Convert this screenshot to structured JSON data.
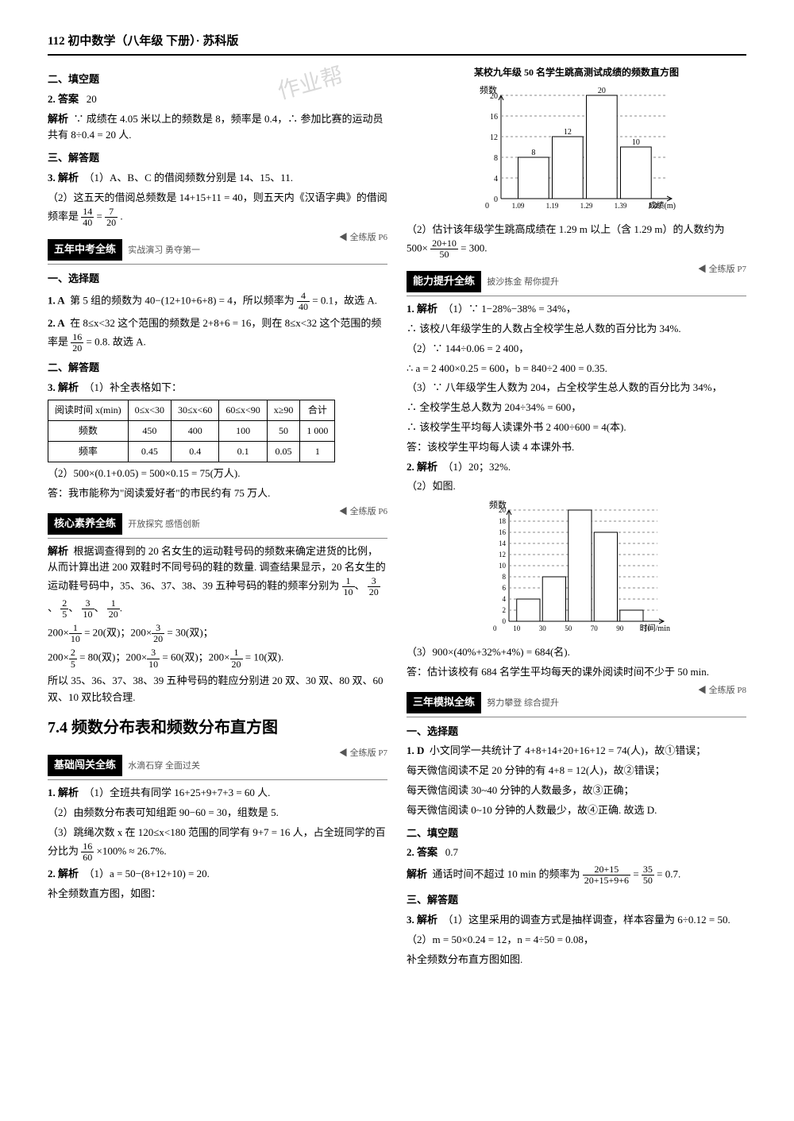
{
  "header": "112  初中数学（八年级  下册）· 苏科版",
  "left": {
    "sec2_title": "二、填空题",
    "q2_label": "2. 答案",
    "q2_ans": "20",
    "q2_expl_label": "解析",
    "q2_expl": "∵ 成绩在 4.05 米以上的频数是 8，频率是 0.4，∴ 参加比赛的运动员共有 8÷0.4 = 20 人.",
    "sec3_title": "三、解答题",
    "q3_label": "3. 解析",
    "q3_p1": "（1）A、B、C 的借阅频数分别是 14、15、11.",
    "q3_p2a": "（2）这五天的借阅总频数是 14+15+11 = 40，则五天内《汉语字典》的借阅频率是",
    "q3_frac1_num": "14",
    "q3_frac1_den": "40",
    "q3_eq": " = ",
    "q3_frac2_num": "7",
    "q3_frac2_den": "20",
    "q3_period": ".",
    "banner5": "五年中考全练",
    "banner5_sub": "实战演习 勇夺第一",
    "banner5_right": "◀ 全练版 P6",
    "mc_title": "一、选择题",
    "mc1_label": "1. A",
    "mc1_text_a": "第 5 组的频数为 40−(12+10+6+8) = 4，所以频率为",
    "mc1_frac_num": "4",
    "mc1_frac_den": "40",
    "mc1_text_b": " = 0.1，故选 A.",
    "mc2_label": "2. A",
    "mc2_text_a": "在 8≤x<32 这个范围的频数是 2+8+6 = 16，则在 8≤x<32 这个范围的频率是",
    "mc2_frac_num": "16",
    "mc2_frac_den": "20",
    "mc2_text_b": " = 0.8. 故选 A.",
    "ans_title": "二、解答题",
    "ans3_label": "3. 解析",
    "ans3_p1": "（1）补全表格如下：",
    "table": {
      "headers": [
        "阅读时间 x(min)",
        "0≤x<30",
        "30≤x<60",
        "60≤x<90",
        "x≥90",
        "合计"
      ],
      "rows": [
        [
          "频数",
          "450",
          "400",
          "100",
          "50",
          "1 000"
        ],
        [
          "频率",
          "0.45",
          "0.4",
          "0.1",
          "0.05",
          "1"
        ]
      ]
    },
    "ans3_p2": "（2）500×(0.1+0.05) = 500×0.15 = 75(万人).",
    "ans3_p3": "答：我市能称为\"阅读爱好者\"的市民约有 75 万人.",
    "bannerH": "核心素养全练",
    "bannerH_sub": "开放探究 感悟创新",
    "bannerH_right": "◀ 全练版 P6",
    "hx_label": "解析",
    "hx_p1": "根据调查得到的 20 名女生的运动鞋号码的频数来确定进货的比例，从而计算出进 200 双鞋时不同号码的鞋的数量. 调查结果显示，20 名女生的运动鞋号码中，35、36、37、38、39 五种号码的鞋的频率分别为",
    "hx_fr1n": "1",
    "hx_fr1d": "10",
    "hx_c1": "、",
    "hx_fr2n": "3",
    "hx_fr2d": "20",
    "hx_c2": "、",
    "hx_fr3n": "2",
    "hx_fr3d": "5",
    "hx_c3": "、",
    "hx_fr4n": "3",
    "hx_fr4d": "10",
    "hx_c4": "、",
    "hx_fr5n": "1",
    "hx_fr5d": "20",
    "hx_c5": ".",
    "hx_l1a": "200×",
    "hx_l1fn": "1",
    "hx_l1fd": "10",
    "hx_l1b": " = 20(双)；200×",
    "hx_l1f2n": "3",
    "hx_l1f2d": "20",
    "hx_l1c": " = 30(双)；",
    "hx_l2a": "200×",
    "hx_l2fn": "2",
    "hx_l2fd": "5",
    "hx_l2b": " = 80(双)；200×",
    "hx_l2f2n": "3",
    "hx_l2f2d": "10",
    "hx_l2c": " = 60(双)；200×",
    "hx_l2f3n": "1",
    "hx_l2f3d": "20",
    "hx_l2d": " = 10(双).",
    "hx_p2": "所以 35、36、37、38、39 五种号码的鞋应分别进 20 双、30 双、80 双、60 双、10 双比较合理.",
    "big74": "7.4  频数分布表和频数分布直方图",
    "bannerJ": "基础闯关全练",
    "bannerJ_sub": "水滴石穿 全面过关",
    "bannerJ_right": "◀ 全练版 P7",
    "j1_label": "1. 解析",
    "j1_p1": "（1）全班共有同学 16+25+9+7+3 = 60 人.",
    "j1_p2": "（2）由频数分布表可知组距 90−60 = 30，组数是 5.",
    "j1_p3a": "（3）跳绳次数 x 在 120≤x<180 范围的同学有 9+7 = 16 人，占全班同学的百分比为",
    "j1_frn": "16",
    "j1_frd": "60",
    "j1_p3b": "×100% ≈ 26.7%.",
    "j2_label": "2. 解析",
    "j2_p1": "（1）a = 50−(8+12+10) = 20.",
    "j2_p2": "补全频数直方图，如图："
  },
  "right": {
    "chart1": {
      "title": "某校九年级 50 名学生跳高测试成绩的频数直方图",
      "ylabel": "频数",
      "xlabel": "成绩(m)",
      "xticks": [
        "1.09",
        "1.19",
        "1.29",
        "1.39",
        "1.49"
      ],
      "bars": [
        8,
        12,
        20,
        10
      ],
      "labels": [
        "8",
        "12",
        "20",
        "10"
      ],
      "yticks": [
        0,
        4,
        8,
        12,
        16,
        20
      ],
      "max_y": 20,
      "bar_color": "#ffffff",
      "border": "#000"
    },
    "r_p1a": "（2）估计该年级学生跳高成绩在 1.29 m 以上（含 1.29 m）的人数约为 500×",
    "r_frn": "20+10",
    "r_frd": "50",
    "r_p1b": " = 300.",
    "bannerN": "能力提升全练",
    "bannerN_sub": "披沙拣金 帮你提升",
    "bannerN_right": "◀ 全练版 P7",
    "n1_label": "1. 解析",
    "n1_p1": "（1）∵ 1−28%−38% = 34%，",
    "n1_p2": "∴ 该校八年级学生的人数占全校学生总人数的百分比为 34%.",
    "n1_p3": "（2）∵ 144÷0.06 = 2 400，",
    "n1_p4": "∴ a = 2 400×0.25 = 600，b = 840÷2 400 = 0.35.",
    "n1_p5": "（3）∵ 八年级学生人数为 204，占全校学生总人数的百分比为 34%，",
    "n1_p6": "∴ 全校学生总人数为 204÷34% = 600，",
    "n1_p7": "∴ 该校学生平均每人读课外书 2 400÷600 = 4(本).",
    "n1_p8": "答：该校学生平均每人读 4 本课外书.",
    "n2_label": "2. 解析",
    "n2_p1": "（1）20；32%.",
    "n2_p2": "（2）如图.",
    "chart2": {
      "ylabel": "频数",
      "xlabel": "时间/min",
      "xticks": [
        "10",
        "30",
        "50",
        "70",
        "90",
        "110"
      ],
      "bars": [
        4,
        8,
        20,
        16,
        2
      ],
      "yticks": [
        0,
        2,
        4,
        6,
        8,
        10,
        12,
        14,
        16,
        18,
        20
      ],
      "max_y": 20,
      "bar_color": "#ffffff",
      "border": "#000"
    },
    "n2_p3": "（3）900×(40%+32%+4%) = 684(名).",
    "n2_p4": "答：估计该校有 684 名学生平均每天的课外阅读时间不少于 50 min.",
    "banner3": "三年模拟全练",
    "banner3_sub": "努力攀登 综合提升",
    "banner3_right": "◀ 全练版 P8",
    "m_sec1": "一、选择题",
    "m1_label": "1. D",
    "m1_p1": "小文同学一共统计了 4+8+14+20+16+12 = 74(人)，故①错误；",
    "m1_p2": "每天微信阅读不足 20 分钟的有 4+8 = 12(人)，故②错误；",
    "m1_p3": "每天微信阅读 30~40 分钟的人数最多，故③正确；",
    "m1_p4": "每天微信阅读 0~10 分钟的人数最少，故④正确. 故选 D.",
    "m_sec2": "二、填空题",
    "m2_label": "2. 答案",
    "m2_ans": "0.7",
    "m2_expl_label": "解析",
    "m2_expl_a": "通话时间不超过 10 min 的频率为",
    "m2_fr1n": "20+15",
    "m2_fr1d": "20+15+9+6",
    "m2_eq": " = ",
    "m2_fr2n": "35",
    "m2_fr2d": "50",
    "m2_expl_b": " = 0.7.",
    "m_sec3": "三、解答题",
    "m3_label": "3. 解析",
    "m3_p1": "（1）这里采用的调查方式是抽样调查，样本容量为 6÷0.12 = 50.",
    "m3_p2": "（2）m = 50×0.24 = 12，n = 4÷50 = 0.08，",
    "m3_p3": "补全频数分布直方图如图."
  }
}
